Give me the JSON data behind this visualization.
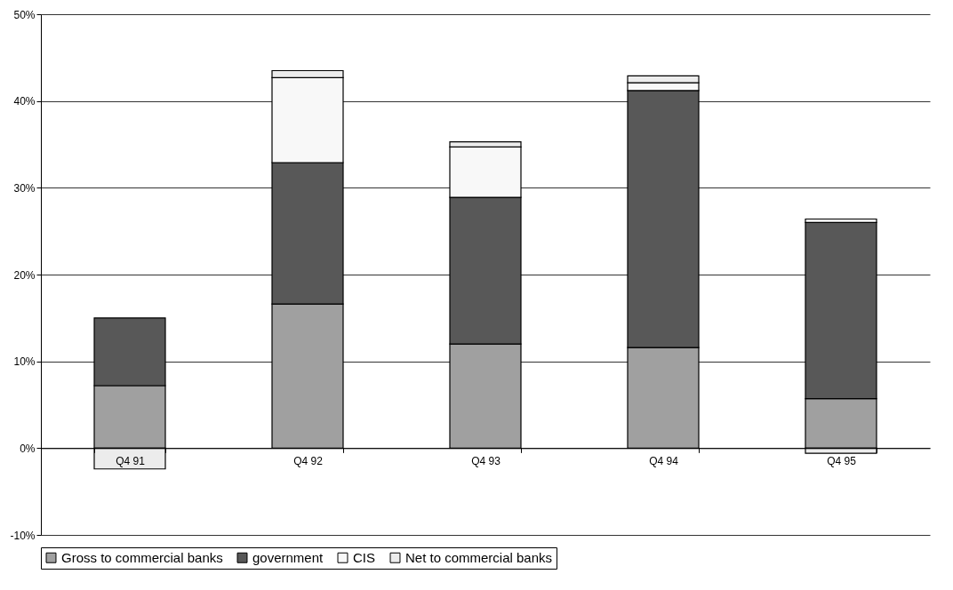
{
  "chart_data": {
    "type": "bar",
    "stacked": true,
    "categories": [
      "Q4 91",
      "Q4 92",
      "Q4 93",
      "Q4 94",
      "Q4 95"
    ],
    "series": [
      {
        "name": "Gross to commercial banks",
        "color": "#a0a0a0",
        "values": [
          7.2,
          16.6,
          12.0,
          11.6,
          5.7
        ]
      },
      {
        "name": "government",
        "color": "#585858",
        "values": [
          7.8,
          16.3,
          16.9,
          29.6,
          20.3
        ]
      },
      {
        "name": "CIS",
        "color": "#f8f8f8",
        "values": [
          null,
          9.8,
          5.8,
          0.9,
          0.4
        ]
      },
      {
        "name": "Net to commercial banks",
        "color": "#ececec",
        "values": [
          -2.4,
          0.8,
          0.6,
          0.8,
          -0.6
        ]
      }
    ],
    "ylim": [
      -10,
      50
    ],
    "yticks": [
      {
        "value": -10,
        "label": "-10%"
      },
      {
        "value": 0,
        "label": "0%"
      },
      {
        "value": 10,
        "label": "10%"
      },
      {
        "value": 20,
        "label": "20%"
      },
      {
        "value": 30,
        "label": "30%"
      },
      {
        "value": 40,
        "label": "40%"
      },
      {
        "value": 50,
        "label": "50%"
      }
    ],
    "grid": "y",
    "legend": "bottom"
  }
}
